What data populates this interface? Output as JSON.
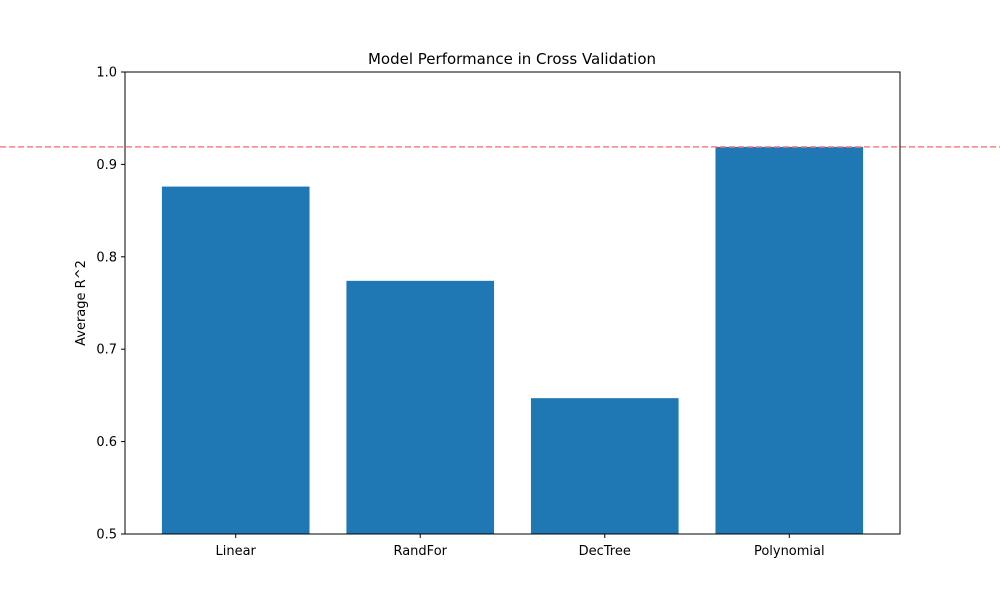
{
  "chart_data": {
    "type": "bar",
    "title": "Model Performance in Cross Validation",
    "xlabel": "",
    "ylabel": "Average R^2",
    "categories": [
      "Linear",
      "RandFor",
      "DecTree",
      "Polynomial"
    ],
    "values": [
      0.876,
      0.774,
      0.647,
      0.919
    ],
    "ylim": [
      0.5,
      1.0
    ],
    "yticks": [
      0.5,
      0.6,
      0.7,
      0.8,
      0.9,
      1.0
    ],
    "ytick_labels": [
      "0.5",
      "0.6",
      "0.7",
      "0.8",
      "0.9",
      "1.0"
    ],
    "reference_line": {
      "value": 0.919,
      "color": "#ff7f7f",
      "style": "dashed"
    },
    "bar_color": "#1f77b4",
    "grid": false,
    "legend": "none"
  }
}
